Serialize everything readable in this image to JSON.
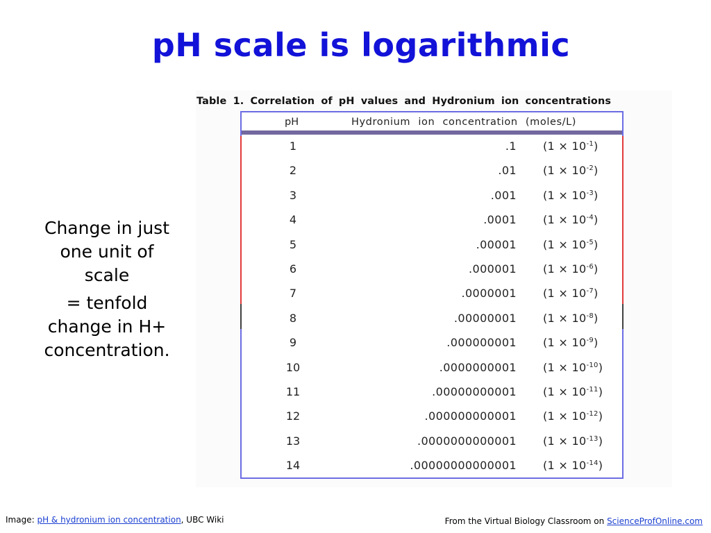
{
  "slide": {
    "title": "pH scale is logarithmic",
    "note_lines": [
      "Change in just one unit of scale",
      "= tenfold change in H+ concentration."
    ]
  },
  "table": {
    "caption": "Table 1. Correlation of pH values and Hydronium ion concentrations",
    "headers": [
      "pH",
      "Hydronium ion concentration (moles/L)"
    ],
    "rows": [
      {
        "ph": "1",
        "decimal": ".1",
        "sci_base": "(1 × 10",
        "sci_exp": "-1",
        "sci_end": ")"
      },
      {
        "ph": "2",
        "decimal": ".01",
        "sci_base": "(1 × 10",
        "sci_exp": "-2",
        "sci_end": ")"
      },
      {
        "ph": "3",
        "decimal": ".001",
        "sci_base": "(1 × 10",
        "sci_exp": "-3",
        "sci_end": ")"
      },
      {
        "ph": "4",
        "decimal": ".0001",
        "sci_base": "(1 × 10",
        "sci_exp": "-4",
        "sci_end": ")"
      },
      {
        "ph": "5",
        "decimal": ".00001",
        "sci_base": "(1 × 10",
        "sci_exp": "-5",
        "sci_end": ")"
      },
      {
        "ph": "6",
        "decimal": ".000001",
        "sci_base": "(1 × 10",
        "sci_exp": "-6",
        "sci_end": ")"
      },
      {
        "ph": "7",
        "decimal": ".0000001",
        "sci_base": "(1 × 10",
        "sci_exp": "-7",
        "sci_end": ")"
      },
      {
        "ph": "8",
        "decimal": ".00000001",
        "sci_base": "(1 × 10",
        "sci_exp": "-8",
        "sci_end": ")"
      },
      {
        "ph": "9",
        "decimal": ".000000001",
        "sci_base": "(1 × 10",
        "sci_exp": "-9",
        "sci_end": ")"
      },
      {
        "ph": "10",
        "decimal": ".0000000001",
        "sci_base": "(1 × 10",
        "sci_exp": "-10",
        "sci_end": ")"
      },
      {
        "ph": "11",
        "decimal": ".00000000001",
        "sci_base": "(1 × 10",
        "sci_exp": "-11",
        "sci_end": ")"
      },
      {
        "ph": "12",
        "decimal": ".000000000001",
        "sci_base": "(1 × 10",
        "sci_exp": "-12",
        "sci_end": ")"
      },
      {
        "ph": "13",
        "decimal": ".0000000000001",
        "sci_base": "(1 × 10",
        "sci_exp": "-13",
        "sci_end": ")"
      },
      {
        "ph": "14",
        "decimal": ".00000000000001",
        "sci_base": "(1 × 10",
        "sci_exp": "-14",
        "sci_end": ")"
      }
    ]
  },
  "footer": {
    "left_prefix": "Image: ",
    "left_link": "pH & hydronium ion concentration",
    "left_suffix": ", UBC Wiki",
    "right_prefix": "From the Virtual Biology Classroom on ",
    "right_link": "ScienceProfOnline.com"
  },
  "colors": {
    "title": "#1212d8",
    "frame": "#6c6ce4",
    "acid_edge": "#e23a3a",
    "header_rule": "#73699f",
    "link": "#1a3fd0"
  }
}
